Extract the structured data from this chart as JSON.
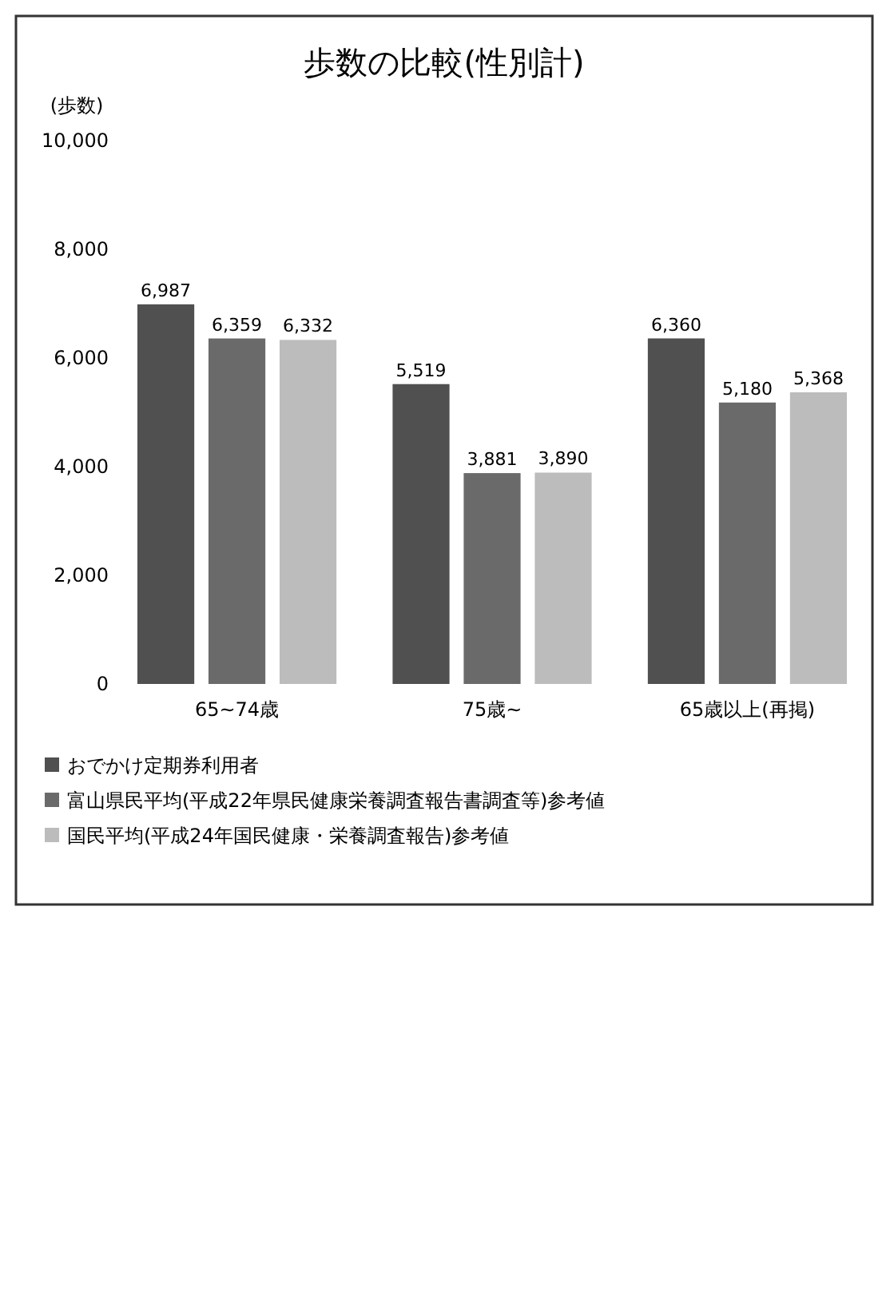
{
  "chart_data": {
    "type": "bar",
    "title": "歩数の比較(性別計)",
    "ylabel": "(歩数)",
    "categories": [
      "65~74歳",
      "75歳~",
      "65歳以上(再掲)"
    ],
    "series": [
      {
        "name": "おでかけ定期券利用者",
        "color": "#505050",
        "values": [
          6987,
          5519,
          6360
        ],
        "value_labels": [
          "6,987",
          "5,519",
          "6,360"
        ]
      },
      {
        "name": "富山県民平均(平成22年県民健康栄養調査報告書調査等)参考値",
        "color": "#6a6a6a",
        "values": [
          6359,
          3881,
          5180
        ],
        "value_labels": [
          "6,359",
          "3,881",
          "5,180"
        ]
      },
      {
        "name": "国民平均(平成24年国民健康・栄養調査報告)参考値",
        "color": "#bcbcbc",
        "values": [
          6332,
          3890,
          5368
        ],
        "value_labels": [
          "6,332",
          "3,890",
          "5,368"
        ]
      }
    ],
    "ylim": [
      0,
      10000
    ],
    "yticks": [
      {
        "value": 0,
        "label": "0"
      },
      {
        "value": 2000,
        "label": "2,000"
      },
      {
        "value": 4000,
        "label": "4,000"
      },
      {
        "value": 6000,
        "label": "6,000"
      },
      {
        "value": 8000,
        "label": "8,000"
      },
      {
        "value": 10000,
        "label": "10,000"
      }
    ],
    "legend": "bottom left"
  }
}
